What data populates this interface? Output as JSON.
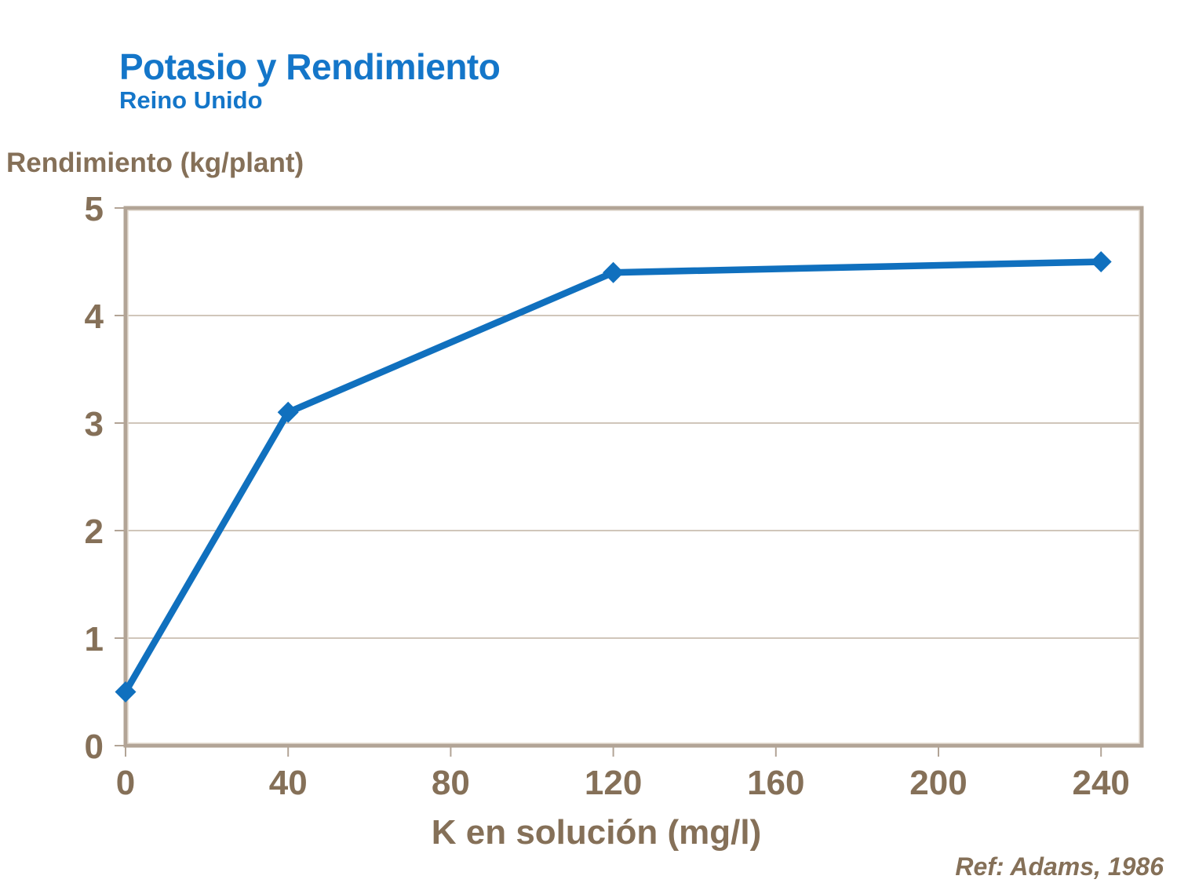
{
  "header": {
    "title": "Potasio y Rendimiento",
    "subtitle": "Reino Unido"
  },
  "footer": {
    "reference": "Ref: Adams, 1986"
  },
  "chart_data": {
    "type": "line",
    "title": "Potasio y Rendimiento",
    "subtitle": "Reino Unido",
    "xlabel": "K en solución (mg/l)",
    "ylabel": "Rendimiento (kg/plant)",
    "series": [
      {
        "name": "Rendimiento",
        "x": [
          0,
          40,
          120,
          240
        ],
        "y": [
          0.5,
          3.1,
          4.4,
          4.5
        ]
      }
    ],
    "xlim": [
      0,
      250
    ],
    "ylim": [
      0,
      5
    ],
    "xticks": [
      0,
      40,
      80,
      120,
      160,
      200,
      240
    ],
    "yticks": [
      0,
      1,
      2,
      3,
      4,
      5
    ],
    "grid": "horizontal",
    "legend": "none",
    "marker": "diamond",
    "reference": "Ref: Adams, 1986",
    "colors": {
      "line": "#1070BE",
      "title": "#1476C9",
      "text": "#857058",
      "axis": "#B2A496",
      "axis_inner": "#E2DACF",
      "grid": "#C1B4A4",
      "background": "#FFFFFF"
    }
  }
}
